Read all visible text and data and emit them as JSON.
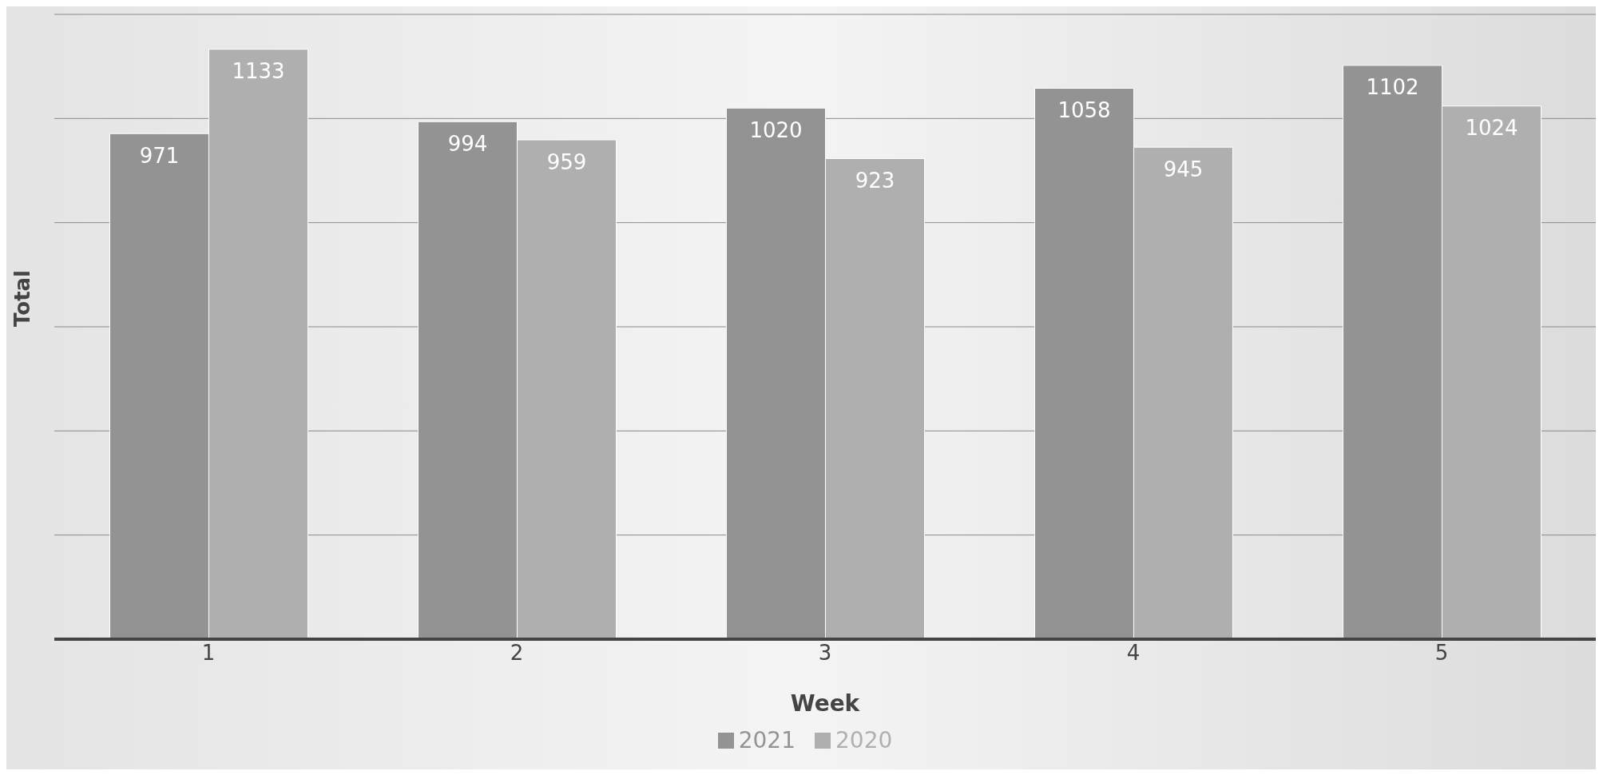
{
  "chart_data": {
    "type": "bar",
    "xlabel": "Week",
    "ylabel": "Total",
    "categories": [
      "1",
      "2",
      "3",
      "4",
      "5"
    ],
    "series": [
      {
        "name": "2021",
        "color": "#939393",
        "values": [
          971,
          994,
          1020,
          1058,
          1102
        ]
      },
      {
        "name": "2020",
        "color": "#afafaf",
        "values": [
          1133,
          959,
          923,
          945,
          1024
        ]
      }
    ],
    "tick_labels": "x",
    "grid": "y",
    "data_labels": true,
    "legend": "bottom"
  }
}
